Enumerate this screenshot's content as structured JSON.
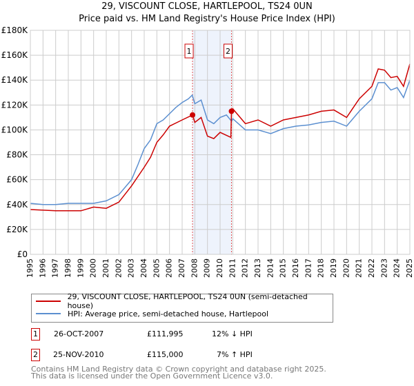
{
  "chart_data": {
    "type": "line",
    "title": "29, VISCOUNT CLOSE, HARTLEPOOL, TS24 0UN",
    "subtitle": "Price paid vs. HM Land Registry's House Price Index (HPI)",
    "xlim": [
      1995,
      2025
    ],
    "ylim": [
      0,
      180000
    ],
    "yticks": [
      0,
      20000,
      40000,
      60000,
      80000,
      100000,
      120000,
      140000,
      160000,
      180000
    ],
    "ytick_labels": [
      "£0",
      "£20K",
      "£40K",
      "£60K",
      "£80K",
      "£100K",
      "£120K",
      "£140K",
      "£160K",
      "£180K"
    ],
    "xticks": [
      1995,
      1996,
      1997,
      1998,
      1999,
      2000,
      2001,
      2002,
      2003,
      2004,
      2005,
      2006,
      2007,
      2008,
      2009,
      2010,
      2011,
      2012,
      2013,
      2014,
      2015,
      2016,
      2017,
      2018,
      2019,
      2020,
      2021,
      2022,
      2023,
      2024,
      2025
    ],
    "grid": true,
    "series": [
      {
        "name": "29, VISCOUNT CLOSE, HARTLEPOOL, TS24 0UN (semi-detached house)",
        "color": "#cc0000",
        "x": [
          1995,
          1997,
          1999,
          2000,
          2001,
          2002,
          2003,
          2004,
          2004.5,
          2005,
          2005.5,
          2006,
          2007,
          2007.82,
          2008,
          2008.5,
          2009,
          2009.5,
          2010,
          2010.85,
          2010.9,
          2011,
          2012,
          2013,
          2014,
          2015,
          2016,
          2017,
          2018,
          2019,
          2020,
          2021,
          2022,
          2022.5,
          2023,
          2023.5,
          2024,
          2024.5,
          2025
        ],
        "y": [
          36000,
          35000,
          35000,
          38000,
          37000,
          42000,
          55000,
          70000,
          78000,
          90000,
          96000,
          103000,
          108000,
          111995,
          106000,
          110000,
          95000,
          93000,
          98000,
          94000,
          115000,
          117000,
          105000,
          108000,
          103000,
          108000,
          110000,
          112000,
          115000,
          116000,
          110000,
          125000,
          135000,
          149000,
          148000,
          142000,
          143000,
          135000,
          153000
        ]
      },
      {
        "name": "HPI: Average price, semi-detached house, Hartlepool",
        "color": "#5b8fd0",
        "x": [
          1995,
          1996,
          1997,
          1998,
          1999,
          2000,
          2001,
          2002,
          2003,
          2003.5,
          2004,
          2004.5,
          2005,
          2005.5,
          2006,
          2006.5,
          2007,
          2007.5,
          2007.8,
          2008,
          2008.5,
          2009,
          2009.5,
          2010,
          2010.5,
          2010.9,
          2011,
          2012,
          2013,
          2014,
          2015,
          2016,
          2017,
          2018,
          2019,
          2020,
          2021,
          2022,
          2022.5,
          2023,
          2023.5,
          2024,
          2024.5,
          2025
        ],
        "y": [
          41000,
          40000,
          40000,
          41000,
          41000,
          41000,
          43000,
          48000,
          60000,
          72000,
          85000,
          92000,
          105000,
          108000,
          113000,
          118000,
          122000,
          125000,
          128000,
          121000,
          124000,
          108000,
          105000,
          110000,
          112000,
          107000,
          109000,
          100000,
          100000,
          97000,
          101000,
          103000,
          104000,
          106000,
          107000,
          103000,
          115000,
          125000,
          138000,
          138000,
          132000,
          134000,
          126000,
          140000
        ]
      }
    ],
    "annotations": [
      {
        "label": "1",
        "x": 2007.82
      },
      {
        "label": "2",
        "x": 2010.9
      }
    ]
  },
  "legend": {
    "items": [
      "29, VISCOUNT CLOSE, HARTLEPOOL, TS24 0UN (semi-detached house)",
      "HPI: Average price, semi-detached house, Hartlepool"
    ]
  },
  "transactions": [
    {
      "num": "1",
      "date": "26-OCT-2007",
      "price": "£111,995",
      "hpi": "12% ↓ HPI"
    },
    {
      "num": "2",
      "date": "25-NOV-2010",
      "price": "£115,000",
      "hpi": "7% ↑ HPI"
    }
  ],
  "footer": [
    "Contains HM Land Registry data © Crown copyright and database right 2025.",
    "This data is licensed under the Open Government Licence v3.0."
  ]
}
